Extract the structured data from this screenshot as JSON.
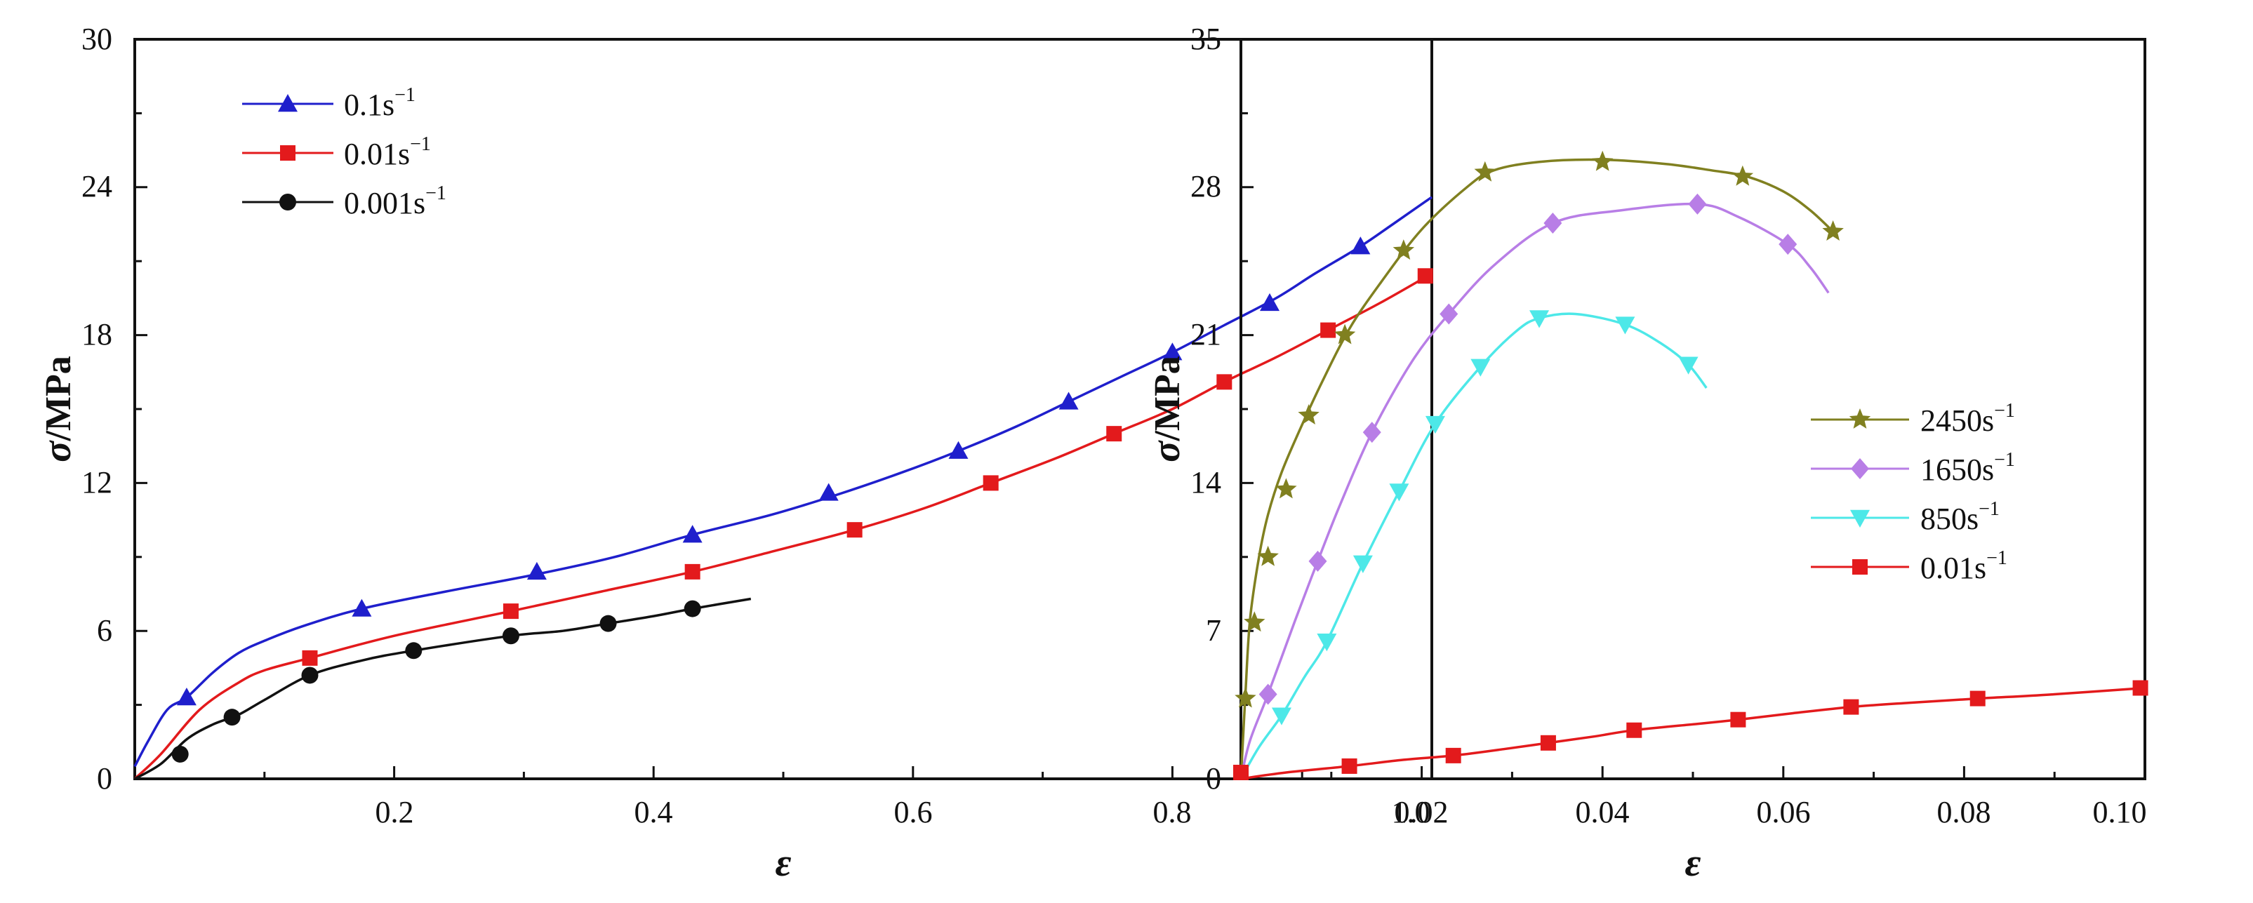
{
  "chart_data": [
    {
      "type": "line",
      "title": "",
      "xlabel": "ε",
      "ylabel_symbol": "σ",
      "ylabel_unit": "/MPa",
      "xlim": [
        0,
        1.0
      ],
      "ylim": [
        0,
        30
      ],
      "x_ticks": [
        0.2,
        0.4,
        0.6,
        0.8,
        1.0
      ],
      "x_tick_labels": [
        "0.2",
        "0.4",
        "0.6",
        "0.8",
        "1.0"
      ],
      "y_ticks": [
        0,
        6,
        12,
        18,
        24,
        30
      ],
      "y_tick_labels": [
        "0",
        "6",
        "12",
        "18",
        "24",
        "30"
      ],
      "legend_position": "top-left",
      "series": [
        {
          "name": "0.1s",
          "name_sup": "−1",
          "color": "#1f1fcc",
          "marker": "triangle",
          "x": [
            0,
            0.01,
            0.025,
            0.04,
            0.06,
            0.08,
            0.1,
            0.13,
            0.175,
            0.24,
            0.31,
            0.37,
            0.43,
            0.49,
            0.54,
            0.59,
            0.635,
            0.68,
            0.72,
            0.76,
            0.8,
            0.84,
            0.88,
            0.91,
            0.945,
            0.97,
            1.0
          ],
          "y": [
            0.5,
            1.5,
            2.8,
            3.3,
            4.3,
            5.1,
            5.6,
            6.2,
            6.9,
            7.6,
            8.3,
            9.0,
            9.9,
            10.7,
            11.5,
            12.4,
            13.3,
            14.3,
            15.3,
            16.3,
            17.3,
            18.4,
            19.5,
            20.5,
            21.6,
            22.5,
            23.6
          ],
          "marker_x": [
            0.04,
            0.175,
            0.31,
            0.43,
            0.535,
            0.635,
            0.72,
            0.8,
            0.875,
            0.945
          ],
          "marker_y": [
            3.3,
            6.9,
            8.4,
            9.9,
            11.6,
            13.3,
            15.3,
            17.3,
            19.3,
            21.6
          ]
        },
        {
          "name": "0.01s",
          "name_sup": "−1",
          "color": "#e31a1c",
          "marker": "square",
          "x": [
            0,
            0.02,
            0.05,
            0.08,
            0.1,
            0.135,
            0.2,
            0.29,
            0.36,
            0.43,
            0.49,
            0.555,
            0.61,
            0.66,
            0.71,
            0.755,
            0.8,
            0.84,
            0.88,
            0.92,
            0.96,
            1.0
          ],
          "y": [
            0,
            1.0,
            2.8,
            3.9,
            4.4,
            4.9,
            5.8,
            6.8,
            7.6,
            8.4,
            9.2,
            10.1,
            11.0,
            12.0,
            13.0,
            14.0,
            15.0,
            16.1,
            17.1,
            18.2,
            19.3,
            20.5
          ],
          "marker_x": [
            0.135,
            0.29,
            0.43,
            0.555,
            0.66,
            0.755,
            0.84,
            0.92,
            0.995
          ],
          "marker_y": [
            4.9,
            6.8,
            8.4,
            10.1,
            12.0,
            14.0,
            16.1,
            18.2,
            20.4
          ]
        },
        {
          "name": "0.001s",
          "name_sup": "−1",
          "color": "#111111",
          "marker": "circle",
          "x": [
            0,
            0.02,
            0.04,
            0.06,
            0.08,
            0.1,
            0.135,
            0.175,
            0.215,
            0.29,
            0.33,
            0.365,
            0.4,
            0.43,
            0.475
          ],
          "y": [
            0,
            0.6,
            1.6,
            2.2,
            2.6,
            3.2,
            4.2,
            4.8,
            5.2,
            5.8,
            6.0,
            6.3,
            6.6,
            6.9,
            7.3
          ],
          "marker_x": [
            0.035,
            0.075,
            0.135,
            0.215,
            0.29,
            0.365,
            0.43
          ],
          "marker_y": [
            1.0,
            2.5,
            4.2,
            5.2,
            5.8,
            6.3,
            6.9
          ]
        }
      ]
    },
    {
      "type": "line",
      "title": "",
      "xlabel": "ε",
      "ylabel_symbol": "σ",
      "ylabel_unit": "/MPa",
      "xlim": [
        0,
        0.1
      ],
      "ylim": [
        0,
        35
      ],
      "x_ticks": [
        0.02,
        0.04,
        0.06,
        0.08,
        0.1
      ],
      "x_tick_labels": [
        "0.02",
        "0.04",
        "0.06",
        "0.08",
        "0.10"
      ],
      "y_ticks": [
        0,
        7,
        14,
        21,
        28,
        35
      ],
      "y_tick_labels": [
        "0",
        "7",
        "14",
        "21",
        "28",
        "35"
      ],
      "legend_position": "center-right",
      "series": [
        {
          "name": "2450s",
          "name_sup": "−1",
          "color": "#808020",
          "marker": "star",
          "x": [
            0,
            0.0005,
            0.001,
            0.002,
            0.003,
            0.0045,
            0.0065,
            0.009,
            0.012,
            0.0155,
            0.02,
            0.025,
            0.028,
            0.033,
            0.04,
            0.047,
            0.052,
            0.056,
            0.06,
            0.063,
            0.0655
          ],
          "y": [
            0,
            4.0,
            7.5,
            10.5,
            12.5,
            14.5,
            16.5,
            18.8,
            21.3,
            23.5,
            26.0,
            28.0,
            28.8,
            29.2,
            29.3,
            29.1,
            28.8,
            28.5,
            27.8,
            26.9,
            25.9
          ],
          "marker_x": [
            0.0005,
            0.0015,
            0.003,
            0.005,
            0.0075,
            0.0115,
            0.018,
            0.027,
            0.04,
            0.0555,
            0.0655
          ],
          "marker_y": [
            3.8,
            7.4,
            10.5,
            13.7,
            17.2,
            21.0,
            25.0,
            28.7,
            29.2,
            28.5,
            25.9
          ]
        },
        {
          "name": "1650s",
          "name_sup": "−1",
          "color": "#b87ee6",
          "marker": "diamond",
          "x": [
            0,
            0.001,
            0.003,
            0.006,
            0.0085,
            0.011,
            0.0145,
            0.019,
            0.023,
            0.028,
            0.0345,
            0.042,
            0.0505,
            0.055,
            0.0605,
            0.063,
            0.065
          ],
          "y": [
            0,
            1.8,
            4.0,
            7.5,
            10.3,
            13.0,
            16.4,
            19.8,
            22.0,
            24.3,
            26.3,
            26.9,
            27.2,
            26.6,
            25.3,
            24.2,
            23.0
          ],
          "marker_x": [
            0.003,
            0.0085,
            0.0145,
            0.023,
            0.0345,
            0.0505,
            0.0605
          ],
          "marker_y": [
            4.0,
            10.3,
            16.4,
            22.0,
            26.3,
            27.2,
            25.3
          ]
        },
        {
          "name": "850s",
          "name_sup": "−1",
          "color": "#4de8e8",
          "marker": "triangle-down",
          "x": [
            0,
            0.002,
            0.0045,
            0.007,
            0.0095,
            0.0135,
            0.0175,
            0.0215,
            0.0265,
            0.0305,
            0.033,
            0.037,
            0.0425,
            0.0465,
            0.0495,
            0.0515
          ],
          "y": [
            0,
            1.5,
            3.0,
            4.8,
            6.5,
            10.2,
            13.6,
            16.8,
            19.5,
            21.2,
            21.8,
            22.0,
            21.5,
            20.6,
            19.6,
            18.5
          ],
          "marker_x": [
            0.0045,
            0.0095,
            0.0135,
            0.0175,
            0.0215,
            0.0265,
            0.033,
            0.0425,
            0.0495
          ],
          "marker_y": [
            3.0,
            6.5,
            10.2,
            13.6,
            16.8,
            19.5,
            21.8,
            21.5,
            19.6
          ]
        },
        {
          "name": "0.01s",
          "name_sup": "−1",
          "color": "#e31a1c",
          "marker": "square",
          "x": [
            0,
            0.005,
            0.012,
            0.018,
            0.0235,
            0.029,
            0.034,
            0.039,
            0.0435,
            0.0505,
            0.055,
            0.061,
            0.0675,
            0.074,
            0.0815,
            0.09,
            0.1
          ],
          "y": [
            0,
            0.3,
            0.6,
            0.9,
            1.1,
            1.4,
            1.7,
            2.0,
            2.3,
            2.6,
            2.8,
            3.1,
            3.4,
            3.6,
            3.8,
            4.0,
            4.3
          ],
          "marker_x": [
            0,
            0.012,
            0.0235,
            0.034,
            0.0435,
            0.055,
            0.0675,
            0.0815,
            0.0995
          ],
          "marker_y": [
            0.3,
            0.6,
            1.1,
            1.7,
            2.3,
            2.8,
            3.4,
            3.8,
            4.3
          ]
        }
      ]
    }
  ]
}
